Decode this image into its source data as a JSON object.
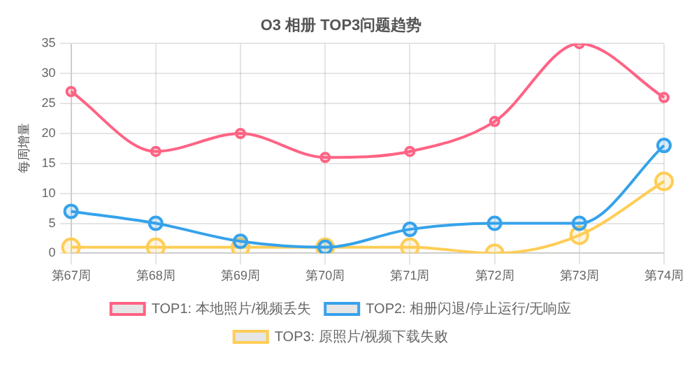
{
  "chart_data": {
    "type": "line",
    "title": "O3 相册 TOP3问题趋势",
    "ylabel": "每周增量",
    "categories": [
      "第67周",
      "第68周",
      "第69周",
      "第70周",
      "第71周",
      "第72周",
      "第73周",
      "第74周"
    ],
    "series": [
      {
        "name": "TOP1: 本地照片/视频丢失",
        "color": "#ff6384",
        "values": [
          27,
          17,
          20,
          16,
          17,
          22,
          35,
          26
        ]
      },
      {
        "name": "TOP2: 相册闪退/停止运行/无响应",
        "color": "#36a2eb",
        "values": [
          7,
          5,
          2,
          1,
          4,
          5,
          5,
          18
        ]
      },
      {
        "name": "TOP3: 原照片/视频下载失败",
        "color": "#ffcd56",
        "values": [
          1,
          1,
          1,
          1,
          1,
          0,
          3,
          12
        ]
      }
    ],
    "ylim": [
      0,
      35
    ],
    "yticks": [
      0,
      5,
      10,
      15,
      20,
      25,
      30,
      35
    ],
    "grid": true,
    "legend": "bottom",
    "marker": "circle",
    "line_style": "solid"
  }
}
